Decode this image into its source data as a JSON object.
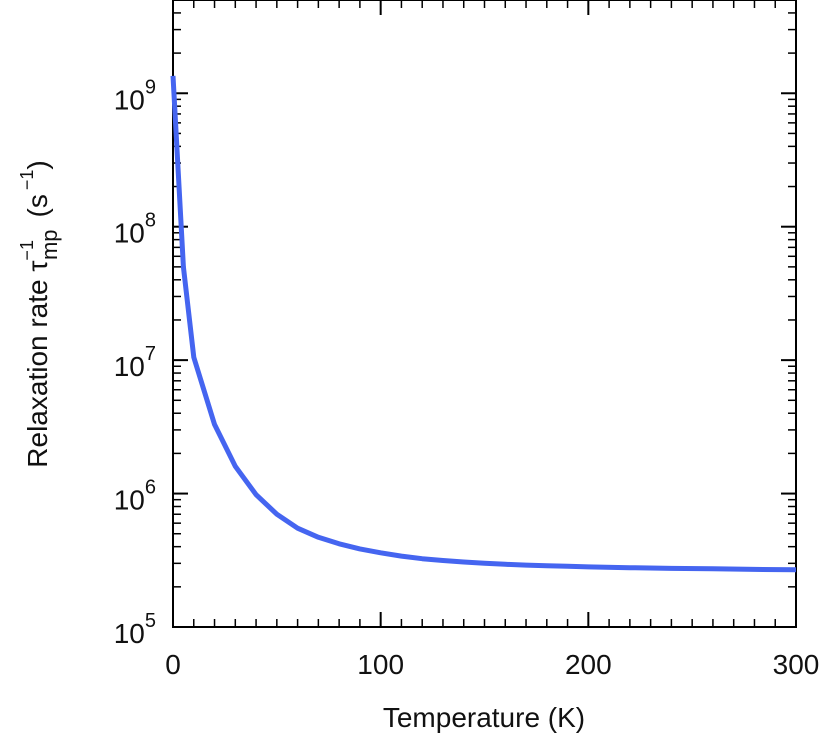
{
  "chart_data": {
    "type": "line",
    "xlabel": "Temperature (K)",
    "ylabel": {
      "prefix": "Relaxation rate ",
      "symbol": "τ",
      "superscript": "−1",
      "subscript": "mp",
      "units_open": "(s",
      "units_superscript": "−1",
      "units_close": ")"
    },
    "xlim": [
      0,
      300
    ],
    "ylim": [
      100000,
      5000000000
    ],
    "y_scale": "log",
    "x_ticks": [
      {
        "value": 0,
        "label": "0"
      },
      {
        "value": 100,
        "label": "100"
      },
      {
        "value": 200,
        "label": "200"
      },
      {
        "value": 300,
        "label": "300"
      }
    ],
    "y_ticks": [
      {
        "value": 100000,
        "base": "10",
        "exp": "5"
      },
      {
        "value": 1000000,
        "base": "10",
        "exp": "6"
      },
      {
        "value": 10000000,
        "base": "10",
        "exp": "7"
      },
      {
        "value": 100000000,
        "base": "10",
        "exp": "8"
      },
      {
        "value": 1000000000,
        "base": "10",
        "exp": "9"
      }
    ],
    "grid": false,
    "series": [
      {
        "color": "#4565f0",
        "x": [
          0,
          5,
          10,
          20,
          30,
          40,
          50,
          60,
          70,
          80,
          90,
          100,
          110,
          120,
          130,
          140,
          150,
          160,
          170,
          180,
          190,
          200,
          220,
          240,
          260,
          280,
          300
        ],
        "y": [
          1350000000,
          50000000,
          10500000,
          3300000,
          1600000,
          980000,
          700000,
          550000,
          470000,
          420000,
          385000,
          360000,
          340000,
          325000,
          315000,
          307000,
          300000,
          295000,
          291000,
          288000,
          285000,
          282000,
          278000,
          275000,
          273000,
          270000,
          269000
        ]
      }
    ]
  }
}
